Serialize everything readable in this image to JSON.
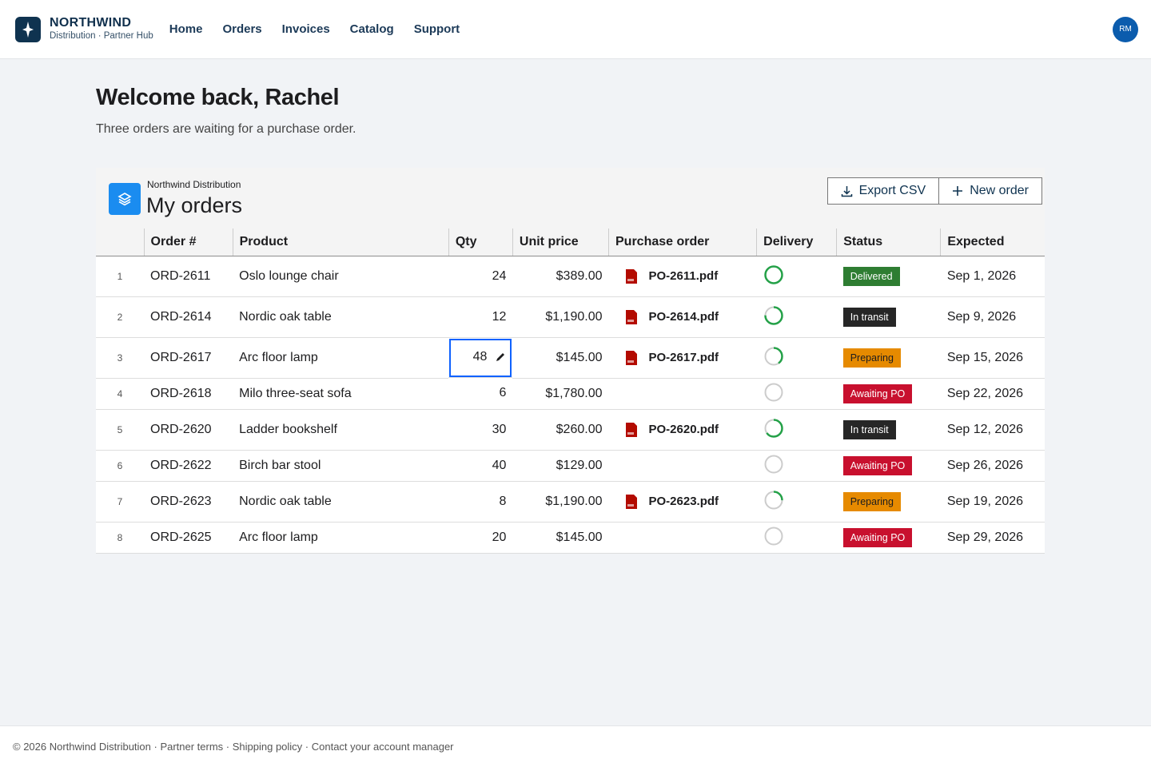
{
  "header": {
    "brand": "NORTHWIND",
    "tagline": "Distribution · Partner Hub",
    "nav": [
      "Home",
      "Orders",
      "Invoices",
      "Catalog",
      "Support"
    ],
    "avatar": "RM"
  },
  "welcome": {
    "title": "Welcome back, Rachel",
    "subtitle": "Three orders are waiting for a purchase order."
  },
  "panel": {
    "eyebrow": "Northwind Distribution",
    "title": "My orders",
    "actions": [
      "Export CSV",
      "New order"
    ]
  },
  "table": {
    "columns": [
      "Order #",
      "Product",
      "Qty",
      "Unit price",
      "Purchase order",
      "Delivery",
      "Status",
      "Expected"
    ],
    "rows": [
      {
        "n": 1,
        "order": "ORD-2611",
        "product": "Oslo lounge chair",
        "qty": 24,
        "price": "$389.00",
        "po": "PO-2611.pdf",
        "delivery": 100,
        "status": "Delivered",
        "expected": "Sep 1, 2026"
      },
      {
        "n": 2,
        "order": "ORD-2614",
        "product": "Nordic oak table",
        "qty": 12,
        "price": "$1,190.00",
        "po": "PO-2614.pdf",
        "delivery": 75,
        "status": "In transit",
        "expected": "Sep 9, 2026"
      },
      {
        "n": 3,
        "order": "ORD-2617",
        "product": "Arc floor lamp",
        "qty": 48,
        "price": "$145.00",
        "po": "PO-2617.pdf",
        "delivery": 40,
        "status": "Preparing",
        "expected": "Sep 15, 2026"
      },
      {
        "n": 4,
        "order": "ORD-2618",
        "product": "Milo three-seat sofa",
        "qty": 6,
        "price": "$1,780.00",
        "po": null,
        "delivery": 0,
        "status": "Awaiting PO",
        "expected": "Sep 22, 2026"
      },
      {
        "n": 5,
        "order": "ORD-2620",
        "product": "Ladder bookshelf",
        "qty": 30,
        "price": "$260.00",
        "po": "PO-2620.pdf",
        "delivery": 65,
        "status": "In transit",
        "expected": "Sep 12, 2026"
      },
      {
        "n": 6,
        "order": "ORD-2622",
        "product": "Birch bar stool",
        "qty": 40,
        "price": "$129.00",
        "po": null,
        "delivery": 0,
        "status": "Awaiting PO",
        "expected": "Sep 26, 2026"
      },
      {
        "n": 7,
        "order": "ORD-2623",
        "product": "Nordic oak table",
        "qty": 8,
        "price": "$1,190.00",
        "po": "PO-2623.pdf",
        "delivery": 25,
        "status": "Preparing",
        "expected": "Sep 19, 2026"
      },
      {
        "n": 8,
        "order": "ORD-2625",
        "product": "Arc floor lamp",
        "qty": 20,
        "price": "$145.00",
        "po": null,
        "delivery": 0,
        "status": "Awaiting PO",
        "expected": "Sep 29, 2026"
      }
    ]
  },
  "footer": "© 2026 Northwind Distribution · Partner terms · Shipping policy · Contact your account manager"
}
